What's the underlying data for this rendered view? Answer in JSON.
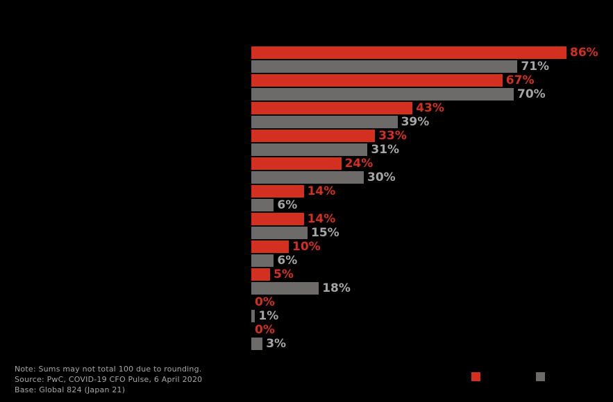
{
  "chart_data": {
    "type": "bar",
    "orientation": "horizontal",
    "title": "",
    "category_labels_visible": false,
    "grid": false,
    "xlim": [
      0,
      86
    ],
    "series": [
      {
        "name": "series-red",
        "color": "#d3301f",
        "label_color": "#d3301f",
        "values": [
          86,
          67,
          43,
          33,
          24,
          14,
          14,
          10,
          5,
          0,
          0
        ],
        "labels": [
          "86%",
          "67%",
          "43%",
          "33%",
          "24%",
          "14%",
          "14%",
          "10%",
          "5%",
          "0%",
          "0%"
        ]
      },
      {
        "name": "series-gray",
        "color": "#6d6a6a",
        "label_color": "#a6a6a6",
        "values": [
          71,
          70,
          39,
          31,
          30,
          6,
          15,
          6,
          18,
          1,
          3
        ],
        "labels": [
          "71%",
          "70%",
          "39%",
          "31%",
          "30%",
          "6%",
          "15%",
          "6%",
          "18%",
          "1%",
          "3%"
        ]
      }
    ],
    "legend": {
      "position": "bottom-right",
      "labels_visible": false,
      "swatch_colors": [
        "#d3301f",
        "#6d6a6a"
      ]
    }
  },
  "footnotes": {
    "note": "Note: Sums may not total 100 due to rounding.",
    "source": "Source: PwC, COVID-19 CFO Pulse, 6 April 2020",
    "base": "Base: Global 824 (Japan 21)"
  },
  "colors": {
    "background": "#000000",
    "red": "#d3301f",
    "gray": "#6d6a6a",
    "footnote_text": "#a6a6a6"
  }
}
